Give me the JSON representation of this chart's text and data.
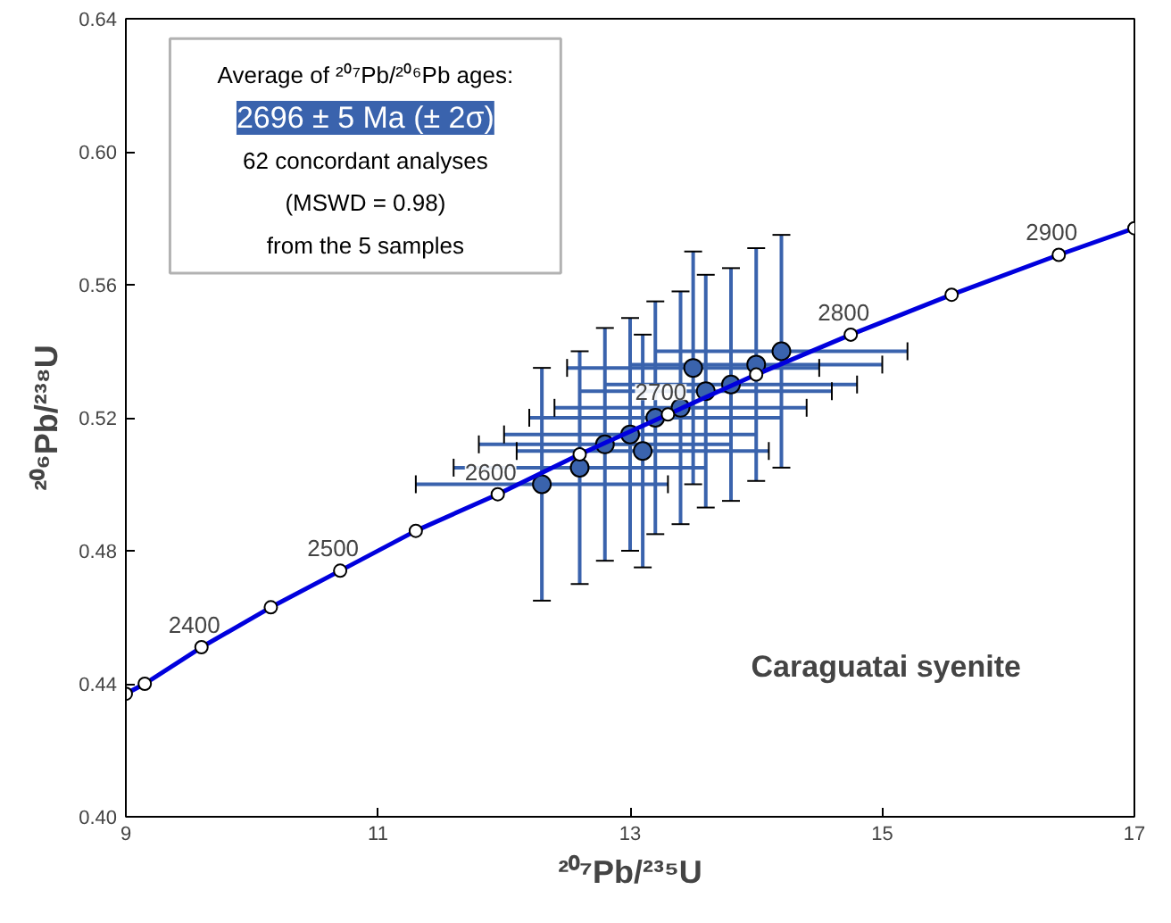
{
  "chart_data": {
    "type": "line",
    "xlabel": "²⁰⁷Pb/²³⁵U",
    "ylabel": "²⁰⁶Pb/²³⁸U",
    "xlim": [
      9,
      17
    ],
    "ylim": [
      0.4,
      0.64
    ],
    "xticks": [
      9,
      11,
      13,
      15,
      17
    ],
    "yticks": [
      {
        "value": 0.4,
        "label": "0.40"
      },
      {
        "value": 0.44,
        "label": "0.44"
      },
      {
        "value": 0.48,
        "label": "0.48"
      },
      {
        "value": 0.52,
        "label": "0.52"
      },
      {
        "value": 0.56,
        "label": "0.56"
      },
      {
        "value": 0.6,
        "label": "0.60"
      },
      {
        "value": 0.64,
        "label": "0.64"
      }
    ],
    "grid": false,
    "series": [
      {
        "type": "scatter",
        "color": "#3a63ad",
        "x": [
          12.3,
          12.6,
          12.8,
          13.0,
          13.1,
          13.2,
          13.4,
          13.5,
          13.6,
          13.8,
          14.0,
          14.2
        ],
        "values": [
          0.5,
          0.505,
          0.512,
          0.515,
          0.51,
          0.52,
          0.523,
          0.535,
          0.528,
          0.53,
          0.536,
          0.54
        ],
        "xerrors": [
          1.0,
          1.0,
          1.0,
          1.0,
          1.0,
          1.0,
          1.0,
          1.0,
          1.0,
          1.0,
          1.0,
          1.0
        ],
        "errors": [
          0.035,
          0.035,
          0.035,
          0.035,
          0.035,
          0.035,
          0.035,
          0.035,
          0.035,
          0.035,
          0.035,
          0.035
        ],
        "marker": "circle"
      },
      {
        "color": "#0000dd",
        "x": [
          9.0,
          9.15,
          9.6,
          10.15,
          10.7,
          11.3,
          11.95,
          12.6,
          13.3,
          14.0,
          14.75,
          15.55,
          16.4,
          17.0
        ],
        "values": [
          0.437,
          0.44,
          0.451,
          0.463,
          0.474,
          0.486,
          0.497,
          0.509,
          0.521,
          0.533,
          0.545,
          0.557,
          0.569,
          0.577
        ],
        "marker": "circle",
        "line_style": "solid"
      }
    ],
    "annotations": [
      "Average of ²⁰⁷Pb/²⁰⁶Pb ages:",
      "2696 ± 5 Ma (± 2σ)",
      "62 concordant analyses",
      "(MSWD = 0.98)",
      "from the 5 samples",
      "Caraguatai syenite",
      {
        "text": "2400",
        "x": 9.6,
        "y": 0.451
      },
      {
        "text": "2500",
        "x": 10.7,
        "y": 0.474
      },
      {
        "text": "2600",
        "x": 11.95,
        "y": 0.497
      },
      {
        "text": "2700",
        "x": 13.3,
        "y": 0.521
      },
      {
        "text": "2800",
        "x": 14.75,
        "y": 0.545
      },
      {
        "text": "2900",
        "x": 16.4,
        "y": 0.569
      }
    ]
  }
}
